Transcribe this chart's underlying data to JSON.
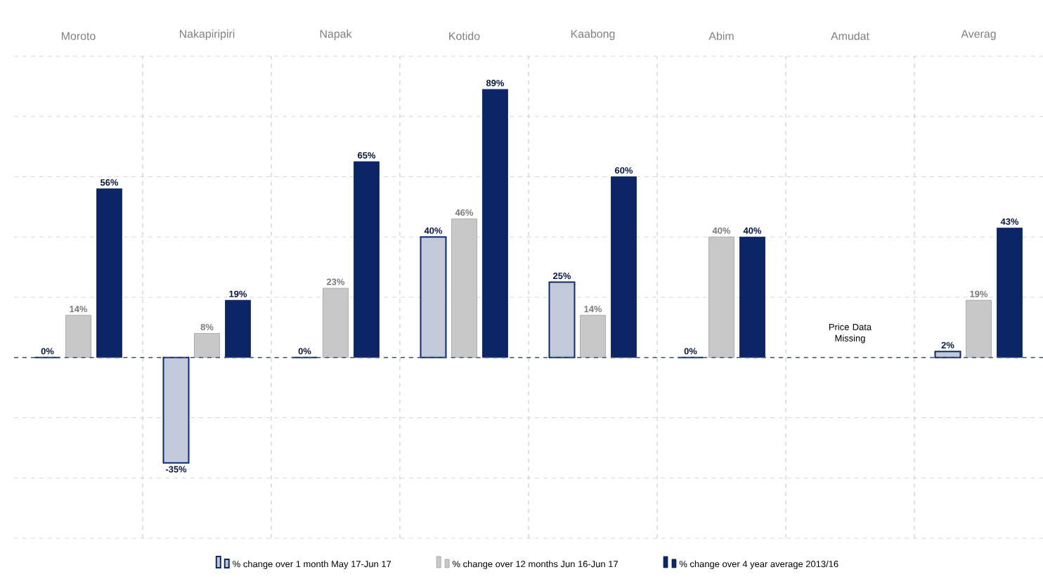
{
  "chart_data": {
    "type": "bar",
    "categories": [
      "Moroto",
      "Nakapiripiri",
      "Napak",
      "Kotido",
      "Kaabong",
      "Abim",
      "Amudat",
      "Averag"
    ],
    "series": [
      {
        "name": "% change over 1 month May 17-Jun 17",
        "color": "#0d2a6b",
        "values": [
          0,
          -35,
          0,
          40,
          25,
          0,
          null,
          2
        ],
        "value_labels": [
          "0%",
          "-35%",
          "0%",
          "40%",
          "25%",
          "0%",
          null,
          "2%"
        ]
      },
      {
        "name": "% change over 12 months  Jun 16-Jun 17",
        "color": "#c8c8c8",
        "values": [
          14,
          8,
          23,
          46,
          14,
          40,
          null,
          19
        ],
        "value_labels": [
          "14%",
          "8%",
          "23%",
          "46%",
          "14%",
          "40%",
          null,
          "19%"
        ]
      },
      {
        "name": "% change over 4 year average 2013/16",
        "color": "#0b2566",
        "values": [
          56,
          19,
          65,
          89,
          60,
          40,
          null,
          43
        ],
        "value_labels": [
          "56%",
          "19%",
          "65%",
          "89%",
          "60%",
          "40%",
          null,
          "43%"
        ]
      }
    ],
    "ylim": [
      -60,
      100
    ],
    "yticks": [
      {
        "value": -60,
        "label": null
      },
      {
        "value": -40,
        "label": null
      },
      {
        "value": -20,
        "label": null
      },
      {
        "value": 0,
        "label": null
      },
      {
        "value": 20,
        "label": null
      },
      {
        "value": 40,
        "label": null
      },
      {
        "value": 60,
        "label": null
      },
      {
        "value": 80,
        "label": null
      },
      {
        "value": 100,
        "label": null
      }
    ],
    "tick_labels": "x",
    "grid": true,
    "legend": "bottom",
    "ref_lines": [
      {
        "axis": "y",
        "value": 0,
        "color": "#44546a",
        "line_style": "dashed"
      }
    ],
    "annotations": [
      "Price Data Missing"
    ]
  }
}
